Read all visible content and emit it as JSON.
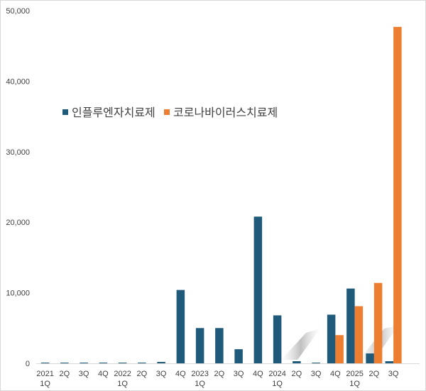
{
  "chart_data": {
    "type": "bar",
    "title": "",
    "xlabel": "",
    "ylabel": "",
    "ylim": [
      0,
      50000
    ],
    "yticks": [
      "0",
      "10,000",
      "20,000",
      "30,000",
      "40,000",
      "50,000"
    ],
    "grid": false,
    "legend_position": "top-left",
    "categories": [
      [
        "2021",
        "1Q"
      ],
      [
        "2Q"
      ],
      [
        "3Q"
      ],
      [
        "4Q"
      ],
      [
        "2022",
        "1Q"
      ],
      [
        "2Q"
      ],
      [
        "3Q"
      ],
      [
        "4Q"
      ],
      [
        "2023",
        "1Q"
      ],
      [
        "2Q"
      ],
      [
        "3Q"
      ],
      [
        "4Q"
      ],
      [
        "2024",
        "1Q"
      ],
      [
        "2Q"
      ],
      [
        "3Q"
      ],
      [
        "4Q"
      ],
      [
        "2025",
        "1Q"
      ],
      [
        "2Q"
      ],
      [
        "3Q"
      ]
    ],
    "series": [
      {
        "name": "인플루엔자치료제",
        "color": "#1f5a7a",
        "values": [
          100,
          100,
          100,
          100,
          100,
          100,
          200,
          10400,
          5000,
          5000,
          2000,
          20800,
          6800,
          300,
          100,
          6900,
          10600,
          1400,
          300
        ]
      },
      {
        "name": "코로나바이러스치료제",
        "color": "#ed7d31",
        "values": [
          0,
          0,
          0,
          0,
          0,
          0,
          0,
          0,
          0,
          0,
          0,
          0,
          0,
          0,
          0,
          4000,
          8100,
          11400,
          47700
        ]
      }
    ]
  }
}
